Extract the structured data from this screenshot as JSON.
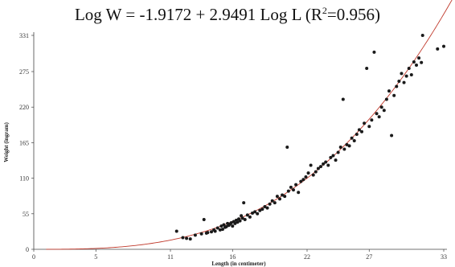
{
  "chart_data": {
    "type": "scatter",
    "title_parts": {
      "lhs": "Log W = -1.9172 + 2.9491 Log L (R",
      "sup": "2",
      "rhs": "=0.956)"
    },
    "xlabel": "Length (in centimeter)",
    "ylabel": "Weight (ingram)",
    "xlim": [
      0,
      33
    ],
    "ylim": [
      0,
      331
    ],
    "x_ticks": [
      0,
      5,
      11,
      16,
      22,
      27,
      33
    ],
    "y_ticks": [
      0,
      55,
      110,
      165,
      220,
      275,
      331
    ],
    "grid": false,
    "legend": "none",
    "colors": {
      "points": "#1a1a1a",
      "fit_line": "#c0392b",
      "axis": "#444444"
    },
    "fit": {
      "a": -1.9172,
      "b": 2.9491,
      "r2": 0.956
    },
    "points": [
      [
        11.5,
        28
      ],
      [
        12.0,
        18
      ],
      [
        12.3,
        17
      ],
      [
        12.6,
        16
      ],
      [
        13.0,
        22
      ],
      [
        13.5,
        24
      ],
      [
        13.7,
        46
      ],
      [
        13.9,
        25
      ],
      [
        14.0,
        26
      ],
      [
        14.3,
        27
      ],
      [
        14.5,
        30
      ],
      [
        14.6,
        28
      ],
      [
        14.8,
        33
      ],
      [
        15.0,
        30
      ],
      [
        15.1,
        36
      ],
      [
        15.2,
        31
      ],
      [
        15.3,
        38
      ],
      [
        15.4,
        34
      ],
      [
        15.5,
        35
      ],
      [
        15.6,
        40
      ],
      [
        15.7,
        37
      ],
      [
        15.8,
        39
      ],
      [
        15.9,
        41
      ],
      [
        16.0,
        36
      ],
      [
        16.1,
        43
      ],
      [
        16.2,
        40
      ],
      [
        16.3,
        45
      ],
      [
        16.4,
        42
      ],
      [
        16.5,
        47
      ],
      [
        16.6,
        44
      ],
      [
        16.7,
        52
      ],
      [
        16.8,
        48
      ],
      [
        16.9,
        72
      ],
      [
        17.0,
        46
      ],
      [
        17.2,
        53
      ],
      [
        17.4,
        50
      ],
      [
        17.6,
        56
      ],
      [
        17.8,
        58
      ],
      [
        18.0,
        55
      ],
      [
        18.2,
        60
      ],
      [
        18.4,
        62
      ],
      [
        18.6,
        66
      ],
      [
        18.8,
        64
      ],
      [
        19.0,
        70
      ],
      [
        19.2,
        75
      ],
      [
        19.4,
        72
      ],
      [
        19.6,
        82
      ],
      [
        19.8,
        78
      ],
      [
        20.0,
        84
      ],
      [
        20.2,
        82
      ],
      [
        20.4,
        158
      ],
      [
        20.5,
        90
      ],
      [
        20.7,
        96
      ],
      [
        20.9,
        92
      ],
      [
        21.1,
        100
      ],
      [
        21.3,
        88
      ],
      [
        21.5,
        105
      ],
      [
        21.7,
        108
      ],
      [
        21.9,
        112
      ],
      [
        22.1,
        118
      ],
      [
        22.3,
        130
      ],
      [
        22.5,
        115
      ],
      [
        22.7,
        120
      ],
      [
        22.9,
        125
      ],
      [
        23.1,
        128
      ],
      [
        23.3,
        132
      ],
      [
        23.5,
        135
      ],
      [
        23.7,
        130
      ],
      [
        23.9,
        142
      ],
      [
        24.1,
        145
      ],
      [
        24.3,
        138
      ],
      [
        24.5,
        150
      ],
      [
        24.7,
        158
      ],
      [
        24.9,
        232
      ],
      [
        25.0,
        155
      ],
      [
        25.2,
        162
      ],
      [
        25.4,
        160
      ],
      [
        25.6,
        172
      ],
      [
        25.8,
        168
      ],
      [
        26.0,
        178
      ],
      [
        26.2,
        185
      ],
      [
        26.4,
        182
      ],
      [
        26.6,
        195
      ],
      [
        26.8,
        280
      ],
      [
        27.0,
        190
      ],
      [
        27.2,
        200
      ],
      [
        27.4,
        305
      ],
      [
        27.6,
        210
      ],
      [
        27.8,
        205
      ],
      [
        28.0,
        220
      ],
      [
        28.2,
        215
      ],
      [
        28.4,
        232
      ],
      [
        28.6,
        245
      ],
      [
        28.8,
        176
      ],
      [
        29.0,
        238
      ],
      [
        29.2,
        252
      ],
      [
        29.4,
        260
      ],
      [
        29.6,
        272
      ],
      [
        29.8,
        258
      ],
      [
        30.0,
        268
      ],
      [
        30.2,
        280
      ],
      [
        30.4,
        270
      ],
      [
        30.6,
        290
      ],
      [
        30.8,
        285
      ],
      [
        31.0,
        296
      ],
      [
        31.2,
        289
      ],
      [
        31.3,
        331
      ],
      [
        32.5,
        310
      ],
      [
        33.0,
        314
      ]
    ]
  }
}
